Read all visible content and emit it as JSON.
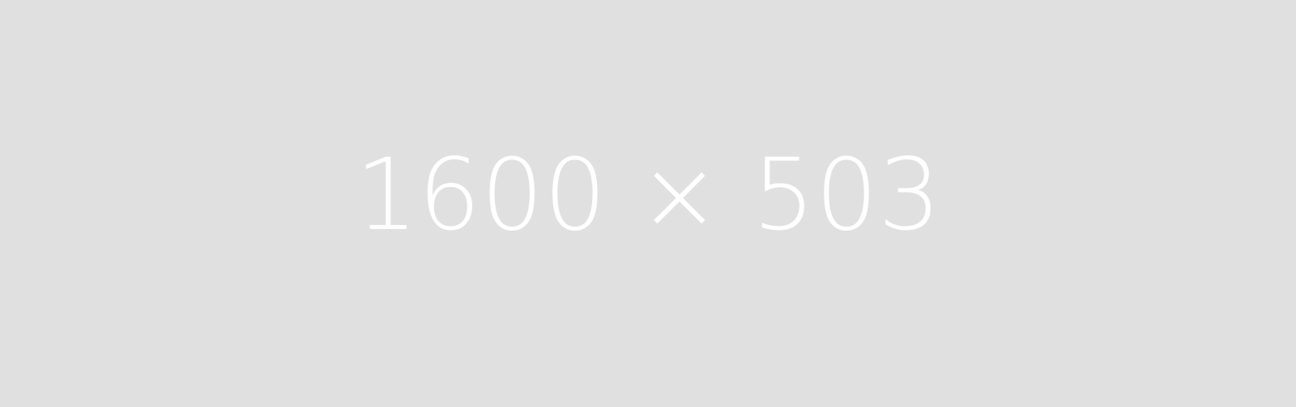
{
  "placeholder": {
    "label": "1600 × 503",
    "background_color": "#e0e0e0",
    "text_color": "#ffffff"
  }
}
